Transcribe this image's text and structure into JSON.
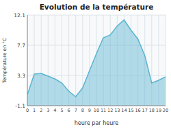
{
  "chart_data": {
    "type": "area",
    "title": "Evolution de la température",
    "xlabel": "heure par heure",
    "ylabel": "Température en °C",
    "x": [
      0,
      1,
      2,
      3,
      4,
      5,
      6,
      7,
      8,
      9,
      10,
      11,
      12,
      13,
      14,
      15,
      16,
      17,
      18,
      19,
      20
    ],
    "values": [
      0.5,
      3.5,
      3.6,
      3.2,
      2.8,
      2.2,
      1.0,
      0.2,
      1.5,
      4.0,
      6.5,
      8.8,
      9.2,
      10.5,
      11.4,
      9.9,
      8.6,
      6.2,
      2.2,
      2.6,
      3.1
    ],
    "color": "#5ab4d0",
    "xlim": [
      0,
      20
    ],
    "xticks": [
      0,
      1,
      2,
      3,
      4,
      5,
      6,
      7,
      8,
      9,
      10,
      11,
      12,
      13,
      14,
      15,
      16,
      17,
      18,
      19,
      20
    ],
    "ylim": [
      -1.1,
      12.1
    ],
    "yticks": [
      -1.1,
      3.3,
      7.7,
      12.1
    ],
    "grid": true
  }
}
